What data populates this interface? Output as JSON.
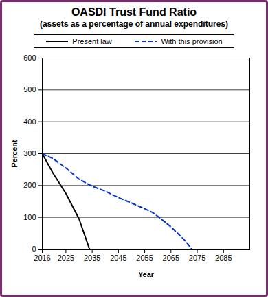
{
  "chart_data": {
    "type": "line",
    "title": "OASDI Trust Fund Ratio",
    "subtitle": "(assets as a percentage of annual expenditures)",
    "x_label": "Year",
    "y_label": "Percent",
    "x": [
      2016,
      2020,
      2025,
      2030,
      2034,
      2035,
      2040,
      2045,
      2050,
      2055,
      2058,
      2060,
      2065,
      2070,
      2073
    ],
    "series": [
      {
        "name": "Present law",
        "color": "#000000",
        "line_style": "solid",
        "values": [
          300,
          240,
          175,
          95,
          0,
          null,
          null,
          null,
          null,
          null,
          null,
          null,
          null,
          null,
          null
        ]
      },
      {
        "name": "With this provision",
        "color": "#0033cc",
        "line_style": "dashed",
        "values": [
          300,
          285,
          255,
          220,
          202,
          198,
          182,
          162,
          145,
          127,
          115,
          103,
          70,
          30,
          0
        ]
      }
    ],
    "xlim": [
      2016,
      2095
    ],
    "xticks": [
      2016,
      2025,
      2035,
      2045,
      2055,
      2065,
      2075,
      2085
    ],
    "ylim": [
      0,
      600
    ],
    "yticks": [
      0,
      100,
      200,
      300,
      400,
      500,
      600
    ],
    "grid": true,
    "legend": "top"
  }
}
